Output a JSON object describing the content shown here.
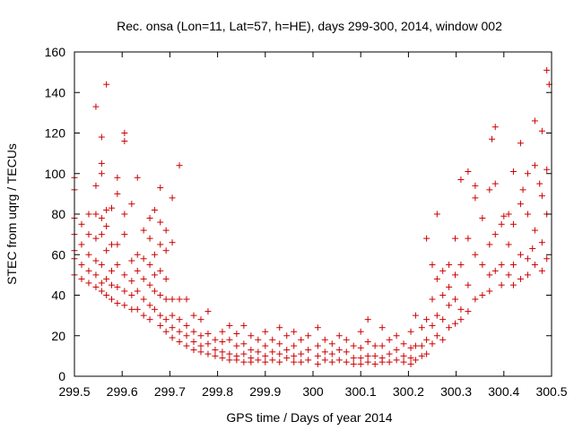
{
  "chart_data": {
    "type": "scatter",
    "title": "Rec. onsa (Lon=11, Lat=57, h=HE), days 299-300, 2014, window 002",
    "xlabel": "GPS time / Days of year 2014",
    "ylabel": "STEC from uqrg / TECUs",
    "xlim": [
      299.5,
      300.5
    ],
    "ylim": [
      0,
      160
    ],
    "xticks": [
      "299.5",
      "299.6",
      "299.7",
      "299.8",
      "299.9",
      "300",
      "300.1",
      "300.2",
      "300.3",
      "300.4",
      "300.5"
    ],
    "yticks": [
      "0",
      "20",
      "40",
      "60",
      "80",
      "100",
      "120",
      "140",
      "160"
    ],
    "marker": "+",
    "color": "#cc0000",
    "grid": false,
    "series": [
      {
        "name": "STEC",
        "points": [
          [
            299.5,
            98
          ],
          [
            299.5,
            92
          ],
          [
            299.5,
            78
          ],
          [
            299.5,
            70
          ],
          [
            299.5,
            62
          ],
          [
            299.5,
            58
          ],
          [
            299.5,
            50
          ],
          [
            299.515,
            75
          ],
          [
            299.515,
            65
          ],
          [
            299.515,
            55
          ],
          [
            299.515,
            48
          ],
          [
            299.53,
            80
          ],
          [
            299.53,
            70
          ],
          [
            299.53,
            60
          ],
          [
            299.53,
            52
          ],
          [
            299.53,
            46
          ],
          [
            299.545,
            133
          ],
          [
            299.545,
            94
          ],
          [
            299.545,
            80
          ],
          [
            299.545,
            68
          ],
          [
            299.545,
            57
          ],
          [
            299.545,
            50
          ],
          [
            299.545,
            44
          ],
          [
            299.557,
            118
          ],
          [
            299.557,
            105
          ],
          [
            299.557,
            100
          ],
          [
            299.557,
            78
          ],
          [
            299.557,
            70
          ],
          [
            299.557,
            55
          ],
          [
            299.557,
            46
          ],
          [
            299.557,
            42
          ],
          [
            299.567,
            144
          ],
          [
            299.567,
            82
          ],
          [
            299.567,
            74
          ],
          [
            299.567,
            62
          ],
          [
            299.567,
            48
          ],
          [
            299.567,
            40
          ],
          [
            299.578,
            83
          ],
          [
            299.578,
            65
          ],
          [
            299.578,
            52
          ],
          [
            299.578,
            45
          ],
          [
            299.578,
            38
          ],
          [
            299.59,
            98
          ],
          [
            299.59,
            90
          ],
          [
            299.59,
            65
          ],
          [
            299.59,
            55
          ],
          [
            299.59,
            44
          ],
          [
            299.59,
            36
          ],
          [
            299.605,
            120
          ],
          [
            299.605,
            116
          ],
          [
            299.605,
            80
          ],
          [
            299.605,
            70
          ],
          [
            299.605,
            50
          ],
          [
            299.605,
            42
          ],
          [
            299.605,
            35
          ],
          [
            299.62,
            85
          ],
          [
            299.62,
            57
          ],
          [
            299.62,
            47
          ],
          [
            299.62,
            40
          ],
          [
            299.62,
            33
          ],
          [
            299.632,
            98
          ],
          [
            299.632,
            60
          ],
          [
            299.632,
            52
          ],
          [
            299.632,
            42
          ],
          [
            299.632,
            33
          ],
          [
            299.645,
            72
          ],
          [
            299.645,
            58
          ],
          [
            299.645,
            48
          ],
          [
            299.645,
            38
          ],
          [
            299.645,
            30
          ],
          [
            299.658,
            78
          ],
          [
            299.658,
            68
          ],
          [
            299.658,
            55
          ],
          [
            299.658,
            45
          ],
          [
            299.658,
            35
          ],
          [
            299.658,
            28
          ],
          [
            299.668,
            82
          ],
          [
            299.668,
            60
          ],
          [
            299.668,
            50
          ],
          [
            299.668,
            42
          ],
          [
            299.668,
            33
          ],
          [
            299.68,
            93
          ],
          [
            299.68,
            76
          ],
          [
            299.68,
            65
          ],
          [
            299.68,
            52
          ],
          [
            299.68,
            40
          ],
          [
            299.68,
            30
          ],
          [
            299.68,
            25
          ],
          [
            299.692,
            72
          ],
          [
            299.692,
            62
          ],
          [
            299.692,
            48
          ],
          [
            299.692,
            38
          ],
          [
            299.692,
            28
          ],
          [
            299.692,
            22
          ],
          [
            299.705,
            88
          ],
          [
            299.705,
            66
          ],
          [
            299.705,
            38
          ],
          [
            299.705,
            30
          ],
          [
            299.705,
            24
          ],
          [
            299.705,
            19
          ],
          [
            299.72,
            104
          ],
          [
            299.72,
            38
          ],
          [
            299.72,
            28
          ],
          [
            299.72,
            22
          ],
          [
            299.72,
            17
          ],
          [
            299.735,
            38
          ],
          [
            299.735,
            25
          ],
          [
            299.735,
            20
          ],
          [
            299.735,
            15
          ],
          [
            299.75,
            30
          ],
          [
            299.75,
            22
          ],
          [
            299.75,
            17
          ],
          [
            299.75,
            13
          ],
          [
            299.765,
            28
          ],
          [
            299.765,
            20
          ],
          [
            299.765,
            15
          ],
          [
            299.765,
            12
          ],
          [
            299.78,
            32
          ],
          [
            299.78,
            21
          ],
          [
            299.78,
            16
          ],
          [
            299.78,
            11
          ],
          [
            299.795,
            18
          ],
          [
            299.795,
            13
          ],
          [
            299.795,
            10
          ],
          [
            299.81,
            22
          ],
          [
            299.81,
            17
          ],
          [
            299.81,
            12
          ],
          [
            299.81,
            9
          ],
          [
            299.825,
            25
          ],
          [
            299.825,
            18
          ],
          [
            299.825,
            11
          ],
          [
            299.825,
            8
          ],
          [
            299.84,
            21
          ],
          [
            299.84,
            15
          ],
          [
            299.84,
            10
          ],
          [
            299.84,
            8
          ],
          [
            299.855,
            25
          ],
          [
            299.855,
            16
          ],
          [
            299.855,
            11
          ],
          [
            299.855,
            7
          ],
          [
            299.87,
            20
          ],
          [
            299.87,
            13
          ],
          [
            299.87,
            9
          ],
          [
            299.87,
            7
          ],
          [
            299.885,
            18
          ],
          [
            299.885,
            12
          ],
          [
            299.885,
            8
          ],
          [
            299.9,
            22
          ],
          [
            299.9,
            15
          ],
          [
            299.9,
            10
          ],
          [
            299.9,
            7
          ],
          [
            299.915,
            18
          ],
          [
            299.915,
            12
          ],
          [
            299.915,
            8
          ],
          [
            299.93,
            24
          ],
          [
            299.93,
            16
          ],
          [
            299.93,
            11
          ],
          [
            299.93,
            7
          ],
          [
            299.945,
            20
          ],
          [
            299.945,
            13
          ],
          [
            299.945,
            9
          ],
          [
            299.96,
            22
          ],
          [
            299.96,
            15
          ],
          [
            299.96,
            10
          ],
          [
            299.96,
            7
          ],
          [
            299.975,
            18
          ],
          [
            299.975,
            11
          ],
          [
            299.975,
            7
          ],
          [
            299.99,
            20
          ],
          [
            299.99,
            13
          ],
          [
            299.99,
            8
          ],
          [
            300.01,
            24
          ],
          [
            300.01,
            15
          ],
          [
            300.01,
            10
          ],
          [
            300.01,
            6
          ],
          [
            300.025,
            18
          ],
          [
            300.025,
            12
          ],
          [
            300.025,
            8
          ],
          [
            300.04,
            16
          ],
          [
            300.04,
            11
          ],
          [
            300.04,
            7
          ],
          [
            300.055,
            20
          ],
          [
            300.055,
            13
          ],
          [
            300.055,
            8
          ],
          [
            300.07,
            18
          ],
          [
            300.07,
            12
          ],
          [
            300.07,
            7
          ],
          [
            300.085,
            15
          ],
          [
            300.085,
            9
          ],
          [
            300.085,
            6
          ],
          [
            300.1,
            22
          ],
          [
            300.1,
            14
          ],
          [
            300.1,
            9
          ],
          [
            300.1,
            6
          ],
          [
            300.115,
            28
          ],
          [
            300.115,
            17
          ],
          [
            300.115,
            10
          ],
          [
            300.115,
            7
          ],
          [
            300.13,
            15
          ],
          [
            300.13,
            10
          ],
          [
            300.13,
            6
          ],
          [
            300.145,
            24
          ],
          [
            300.145,
            15
          ],
          [
            300.145,
            9
          ],
          [
            300.145,
            7
          ],
          [
            300.16,
            18
          ],
          [
            300.16,
            11
          ],
          [
            300.16,
            7
          ],
          [
            300.175,
            20
          ],
          [
            300.175,
            13
          ],
          [
            300.175,
            8
          ],
          [
            300.19,
            16
          ],
          [
            300.19,
            10
          ],
          [
            300.19,
            7
          ],
          [
            300.205,
            22
          ],
          [
            300.205,
            14
          ],
          [
            300.205,
            9
          ],
          [
            300.205,
            6
          ],
          [
            300.215,
            30
          ],
          [
            300.215,
            15
          ],
          [
            300.215,
            8
          ],
          [
            300.228,
            24
          ],
          [
            300.228,
            15
          ],
          [
            300.228,
            10
          ],
          [
            300.238,
            68
          ],
          [
            300.238,
            28
          ],
          [
            300.238,
            18
          ],
          [
            300.238,
            11
          ],
          [
            300.25,
            55
          ],
          [
            300.25,
            38
          ],
          [
            300.25,
            25
          ],
          [
            300.25,
            16
          ],
          [
            300.26,
            80
          ],
          [
            300.26,
            48
          ],
          [
            300.26,
            30
          ],
          [
            300.26,
            20
          ],
          [
            300.272,
            52
          ],
          [
            300.272,
            40
          ],
          [
            300.272,
            28
          ],
          [
            300.272,
            18
          ],
          [
            300.285,
            55
          ],
          [
            300.285,
            44
          ],
          [
            300.285,
            35
          ],
          [
            300.285,
            24
          ],
          [
            300.298,
            68
          ],
          [
            300.298,
            50
          ],
          [
            300.298,
            38
          ],
          [
            300.298,
            26
          ],
          [
            300.31,
            97
          ],
          [
            300.31,
            55
          ],
          [
            300.31,
            33
          ],
          [
            300.31,
            28
          ],
          [
            300.325,
            101
          ],
          [
            300.325,
            68
          ],
          [
            300.325,
            45
          ],
          [
            300.325,
            32
          ],
          [
            300.34,
            94
          ],
          [
            300.34,
            88
          ],
          [
            300.34,
            60
          ],
          [
            300.34,
            38
          ],
          [
            300.355,
            78
          ],
          [
            300.355,
            55
          ],
          [
            300.355,
            40
          ],
          [
            300.37,
            92
          ],
          [
            300.37,
            65
          ],
          [
            300.37,
            50
          ],
          [
            300.37,
            42
          ],
          [
            300.382,
            123
          ],
          [
            300.382,
            95
          ],
          [
            300.382,
            70
          ],
          [
            300.382,
            52
          ],
          [
            300.395,
            75
          ],
          [
            300.395,
            55
          ],
          [
            300.395,
            45
          ],
          [
            300.41,
            80
          ],
          [
            300.41,
            65
          ],
          [
            300.41,
            50
          ],
          [
            300.42,
            101
          ],
          [
            300.42,
            75
          ],
          [
            300.42,
            55
          ],
          [
            300.42,
            45
          ],
          [
            300.435,
            115
          ],
          [
            300.435,
            85
          ],
          [
            300.435,
            60
          ],
          [
            300.435,
            48
          ],
          [
            300.45,
            100
          ],
          [
            300.45,
            80
          ],
          [
            300.45,
            58
          ],
          [
            300.45,
            50
          ],
          [
            300.465,
            126
          ],
          [
            300.465,
            104
          ],
          [
            300.465,
            72
          ],
          [
            300.465,
            55
          ],
          [
            300.48,
            121
          ],
          [
            300.48,
            89
          ],
          [
            300.48,
            66
          ],
          [
            300.48,
            52
          ],
          [
            300.49,
            151
          ],
          [
            300.49,
            102
          ],
          [
            300.49,
            80
          ],
          [
            300.49,
            58
          ],
          [
            300.375,
            117
          ],
          [
            300.4,
            79
          ],
          [
            300.44,
            92
          ],
          [
            300.46,
            63
          ],
          [
            300.475,
            95
          ],
          [
            300.495,
            144
          ]
        ]
      }
    ]
  }
}
